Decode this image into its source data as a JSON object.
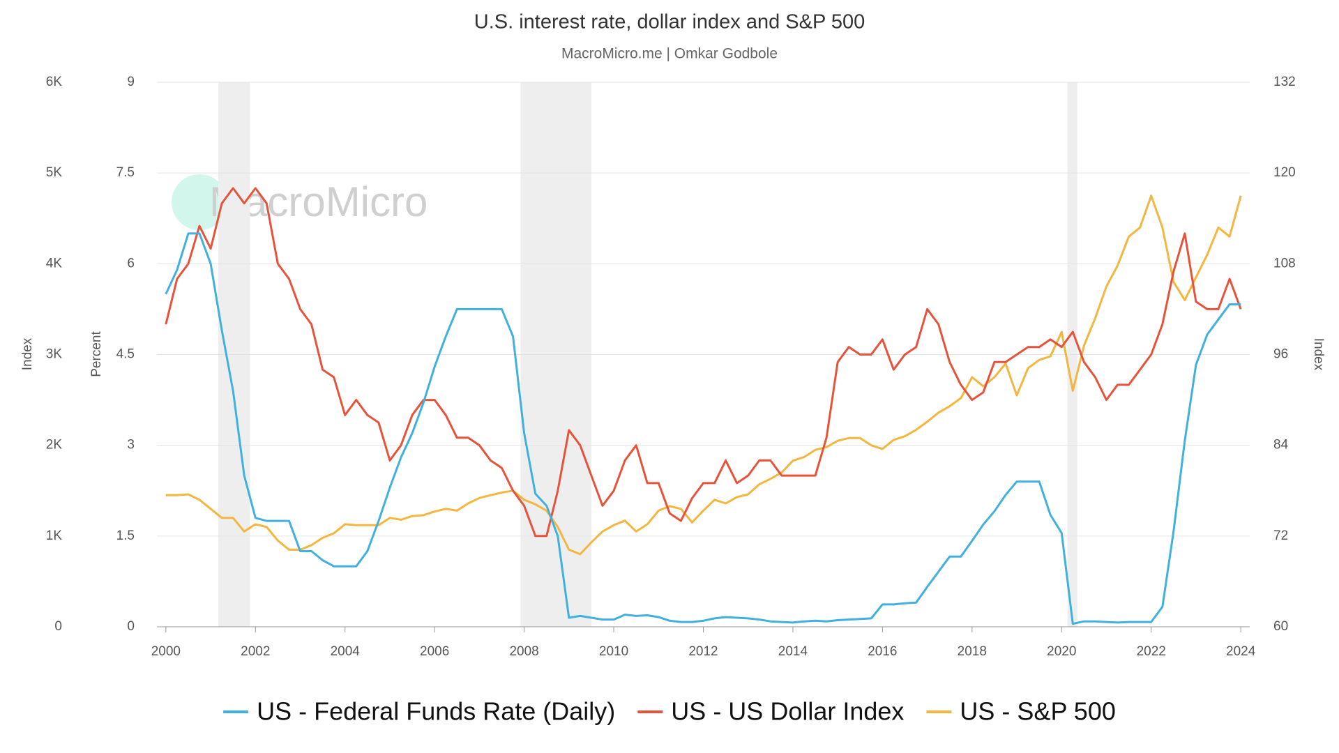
{
  "chart_data": {
    "type": "line",
    "title": "U.S. interest rate, dollar index and S&P 500",
    "subtitle": "MacroMicro.me | Omkar Godbole",
    "watermark": "MacroMicro",
    "y3label": "Index",
    "ylabel": "Percent",
    "y2label": "Index",
    "xlim": [
      1999.8,
      2024.2
    ],
    "xticks": [
      2000,
      2002,
      2004,
      2006,
      2008,
      2010,
      2012,
      2014,
      2016,
      2018,
      2020,
      2022,
      2024
    ],
    "ylim": [
      0,
      9
    ],
    "yticks": [
      0,
      1.5,
      3,
      4.5,
      6,
      7.5,
      9
    ],
    "y2lim": [
      60,
      132
    ],
    "y2ticks": [
      60,
      72,
      84,
      96,
      108,
      120,
      132
    ],
    "y3lim": [
      0,
      6000
    ],
    "y3ticks": [
      0,
      {
        "value": 1000,
        "label": "1K"
      },
      {
        "value": 2000,
        "label": "2K"
      },
      {
        "value": 3000,
        "label": "3K"
      },
      {
        "value": 4000,
        "label": "4K"
      },
      {
        "value": 5000,
        "label": "5K"
      },
      {
        "value": 6000,
        "label": "6K"
      }
    ],
    "grid": true,
    "recession_color": "#eeeeee",
    "recessions": [
      [
        2001.17,
        2001.88
      ],
      [
        2007.92,
        2009.5
      ],
      [
        2020.13,
        2020.35
      ]
    ],
    "x": [
      2000,
      2000.25,
      2000.5,
      2000.75,
      2001,
      2001.25,
      2001.5,
      2001.75,
      2002,
      2002.25,
      2002.5,
      2002.75,
      2003,
      2003.25,
      2003.5,
      2003.75,
      2004,
      2004.25,
      2004.5,
      2004.75,
      2005,
      2005.25,
      2005.5,
      2005.75,
      2006,
      2006.25,
      2006.5,
      2006.75,
      2007,
      2007.25,
      2007.5,
      2007.75,
      2008,
      2008.25,
      2008.5,
      2008.75,
      2009,
      2009.25,
      2009.5,
      2009.75,
      2010,
      2010.25,
      2010.5,
      2010.75,
      2011,
      2011.25,
      2011.5,
      2011.75,
      2012,
      2012.25,
      2012.5,
      2012.75,
      2013,
      2013.25,
      2013.5,
      2013.75,
      2014,
      2014.25,
      2014.5,
      2014.75,
      2015,
      2015.25,
      2015.5,
      2015.75,
      2016,
      2016.25,
      2016.5,
      2016.75,
      2017,
      2017.25,
      2017.5,
      2017.75,
      2018,
      2018.25,
      2018.5,
      2018.75,
      2019,
      2019.25,
      2019.5,
      2019.75,
      2020,
      2020.25,
      2020.5,
      2020.75,
      2021,
      2021.25,
      2021.5,
      2021.75,
      2022,
      2022.25,
      2022.5,
      2022.75,
      2023,
      2023.25,
      2023.5,
      2023.75,
      2024
    ],
    "series": [
      {
        "name": "US - Federal Funds Rate (Daily)",
        "color": "#40b0de",
        "axis": "y",
        "values": [
          5.5,
          5.9,
          6.5,
          6.5,
          6.0,
          4.9,
          3.9,
          2.5,
          1.8,
          1.75,
          1.75,
          1.75,
          1.25,
          1.25,
          1.1,
          1.0,
          1.0,
          1.0,
          1.25,
          1.75,
          2.3,
          2.8,
          3.2,
          3.7,
          4.3,
          4.8,
          5.25,
          5.25,
          5.25,
          5.25,
          5.25,
          4.8,
          3.2,
          2.2,
          2.0,
          1.5,
          0.15,
          0.18,
          0.15,
          0.12,
          0.12,
          0.2,
          0.18,
          0.19,
          0.16,
          0.1,
          0.08,
          0.08,
          0.1,
          0.14,
          0.16,
          0.15,
          0.14,
          0.12,
          0.09,
          0.08,
          0.07,
          0.09,
          0.1,
          0.09,
          0.11,
          0.12,
          0.13,
          0.14,
          0.37,
          0.37,
          0.39,
          0.4,
          0.66,
          0.91,
          1.16,
          1.16,
          1.42,
          1.69,
          1.91,
          2.18,
          2.4,
          2.4,
          2.4,
          1.85,
          1.55,
          0.05,
          0.09,
          0.09,
          0.08,
          0.07,
          0.08,
          0.08,
          0.08,
          0.33,
          1.58,
          3.08,
          4.33,
          4.83,
          5.08,
          5.33,
          5.33
        ]
      },
      {
        "name": "US - US Dollar Index",
        "color": "#e6533b",
        "axis": "y2",
        "values": [
          100,
          106,
          108,
          113,
          110,
          116,
          118,
          116,
          118,
          116,
          108,
          106,
          102,
          100,
          94,
          93,
          88,
          90,
          88,
          87,
          82,
          84,
          88,
          90,
          90,
          88,
          85,
          85,
          84,
          82,
          81,
          78,
          76,
          72,
          72,
          78,
          86,
          84,
          80,
          76,
          78,
          82,
          84,
          79,
          79,
          75,
          74,
          77,
          79,
          79,
          82,
          79,
          80,
          82,
          82,
          80,
          80,
          80,
          80,
          85,
          95,
          97,
          96,
          96,
          98,
          94,
          96,
          97,
          102,
          100,
          95,
          92,
          90,
          91,
          95,
          95,
          96,
          97,
          97,
          98,
          97,
          99,
          95,
          93,
          90,
          92,
          92,
          94,
          96,
          100,
          107,
          112,
          103,
          102,
          102,
          106,
          102
        ]
      },
      {
        "name": "US - S&P 500",
        "color": "#f4b63f",
        "axis": "y3",
        "values": [
          1450,
          1450,
          1460,
          1400,
          1300,
          1200,
          1200,
          1050,
          1130,
          1100,
          950,
          850,
          850,
          900,
          980,
          1030,
          1130,
          1120,
          1120,
          1120,
          1200,
          1180,
          1220,
          1230,
          1270,
          1300,
          1280,
          1360,
          1420,
          1450,
          1480,
          1500,
          1400,
          1350,
          1280,
          1100,
          850,
          800,
          930,
          1050,
          1120,
          1170,
          1050,
          1130,
          1280,
          1330,
          1300,
          1150,
          1280,
          1400,
          1360,
          1430,
          1460,
          1570,
          1630,
          1700,
          1830,
          1870,
          1950,
          1980,
          2050,
          2080,
          2080,
          2000,
          1960,
          2060,
          2100,
          2170,
          2260,
          2360,
          2430,
          2520,
          2750,
          2650,
          2750,
          2900,
          2550,
          2850,
          2940,
          2980,
          3250,
          2600,
          3100,
          3400,
          3750,
          3980,
          4300,
          4400,
          4750,
          4400,
          3800,
          3600,
          3850,
          4100,
          4400,
          4300,
          4750
        ]
      }
    ]
  }
}
